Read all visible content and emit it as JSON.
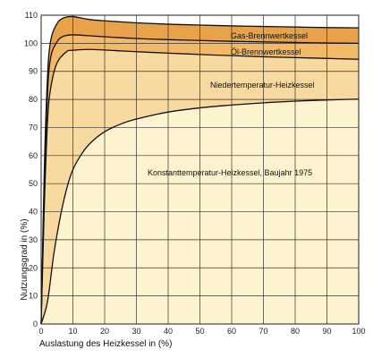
{
  "chart_data": {
    "type": "area",
    "xlabel": "Auslastung des Heizkessel in (%)",
    "ylabel": "Nutzungsgrad in (%)",
    "xlim": [
      0,
      100
    ],
    "ylim": [
      0,
      110
    ],
    "xticks": [
      0,
      10,
      20,
      30,
      40,
      50,
      60,
      70,
      80,
      90,
      100
    ],
    "yticks": [
      0,
      10,
      20,
      30,
      40,
      50,
      60,
      70,
      80,
      90,
      100,
      110
    ],
    "grid": true,
    "series": [
      {
        "name": "Gas-Brennwertkessel",
        "color": "#e8a24a",
        "points": [
          [
            0,
            0
          ],
          [
            1,
            55
          ],
          [
            2,
            88
          ],
          [
            3,
            101
          ],
          [
            5,
            107
          ],
          [
            7,
            109
          ],
          [
            10,
            109.5
          ],
          [
            15,
            108.5
          ],
          [
            20,
            108
          ],
          [
            30,
            107.3
          ],
          [
            40,
            106.8
          ],
          [
            50,
            106.5
          ],
          [
            60,
            106.2
          ],
          [
            70,
            106
          ],
          [
            80,
            105.8
          ],
          [
            90,
            105.6
          ],
          [
            100,
            105.5
          ]
        ]
      },
      {
        "name": "Öl-Brennwertkessel",
        "color": "#f1b968",
        "points": [
          [
            0,
            0
          ],
          [
            1,
            50
          ],
          [
            2,
            82
          ],
          [
            3,
            95
          ],
          [
            5,
            100.5
          ],
          [
            7,
            102.5
          ],
          [
            10,
            103
          ],
          [
            15,
            102.7
          ],
          [
            20,
            102.3
          ],
          [
            30,
            101.7
          ],
          [
            40,
            101.3
          ],
          [
            50,
            101
          ],
          [
            60,
            100.7
          ],
          [
            70,
            100.5
          ],
          [
            80,
            100.3
          ],
          [
            90,
            100.1
          ],
          [
            100,
            100
          ]
        ]
      },
      {
        "name": "Niedertemperatur-Heizkessel",
        "color": "#f8d9a0",
        "points": [
          [
            0,
            0
          ],
          [
            1,
            42
          ],
          [
            2,
            72
          ],
          [
            3,
            84
          ],
          [
            5,
            93
          ],
          [
            8,
            97
          ],
          [
            10,
            97.5
          ],
          [
            15,
            97.8
          ],
          [
            20,
            97.6
          ],
          [
            30,
            97
          ],
          [
            40,
            96.5
          ],
          [
            50,
            96
          ],
          [
            60,
            95.6
          ],
          [
            70,
            95.2
          ],
          [
            80,
            94.9
          ],
          [
            90,
            94.6
          ],
          [
            100,
            94.3
          ]
        ]
      },
      {
        "name": "Konstanttemperatur-Heizkessel, Baujahr 1975",
        "color": "#fdf3cf",
        "points": [
          [
            0,
            0
          ],
          [
            2,
            8
          ],
          [
            4,
            25
          ],
          [
            6,
            38
          ],
          [
            8,
            48
          ],
          [
            10,
            55
          ],
          [
            13,
            61
          ],
          [
            16,
            65
          ],
          [
            20,
            68.5
          ],
          [
            25,
            71.2
          ],
          [
            30,
            73
          ],
          [
            40,
            75.5
          ],
          [
            50,
            77
          ],
          [
            60,
            78
          ],
          [
            70,
            78.8
          ],
          [
            80,
            79.4
          ],
          [
            90,
            79.8
          ],
          [
            100,
            80.1
          ]
        ]
      }
    ]
  }
}
